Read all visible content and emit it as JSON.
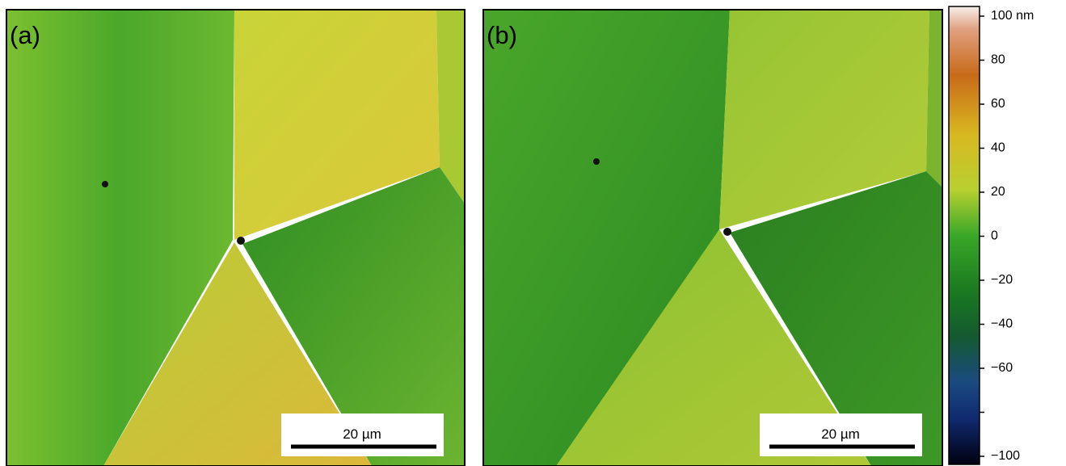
{
  "panels": [
    {
      "label": "(a)",
      "scale_bar": "20 µm"
    },
    {
      "label": "(b)",
      "scale_bar": "20 µm"
    }
  ],
  "colorbar": {
    "lim": [
      -100,
      100
    ],
    "ticks": [
      {
        "value": 100,
        "label": "100 nm"
      },
      80,
      60,
      40,
      20,
      0,
      {
        "value": -20,
        "label": "−20"
      },
      {
        "value": -40,
        "label": "−40"
      },
      {
        "value": -60,
        "label": "−60"
      },
      {
        "value": -80,
        "label": null
      },
      {
        "value": -100,
        "label": "−100"
      }
    ]
  }
}
